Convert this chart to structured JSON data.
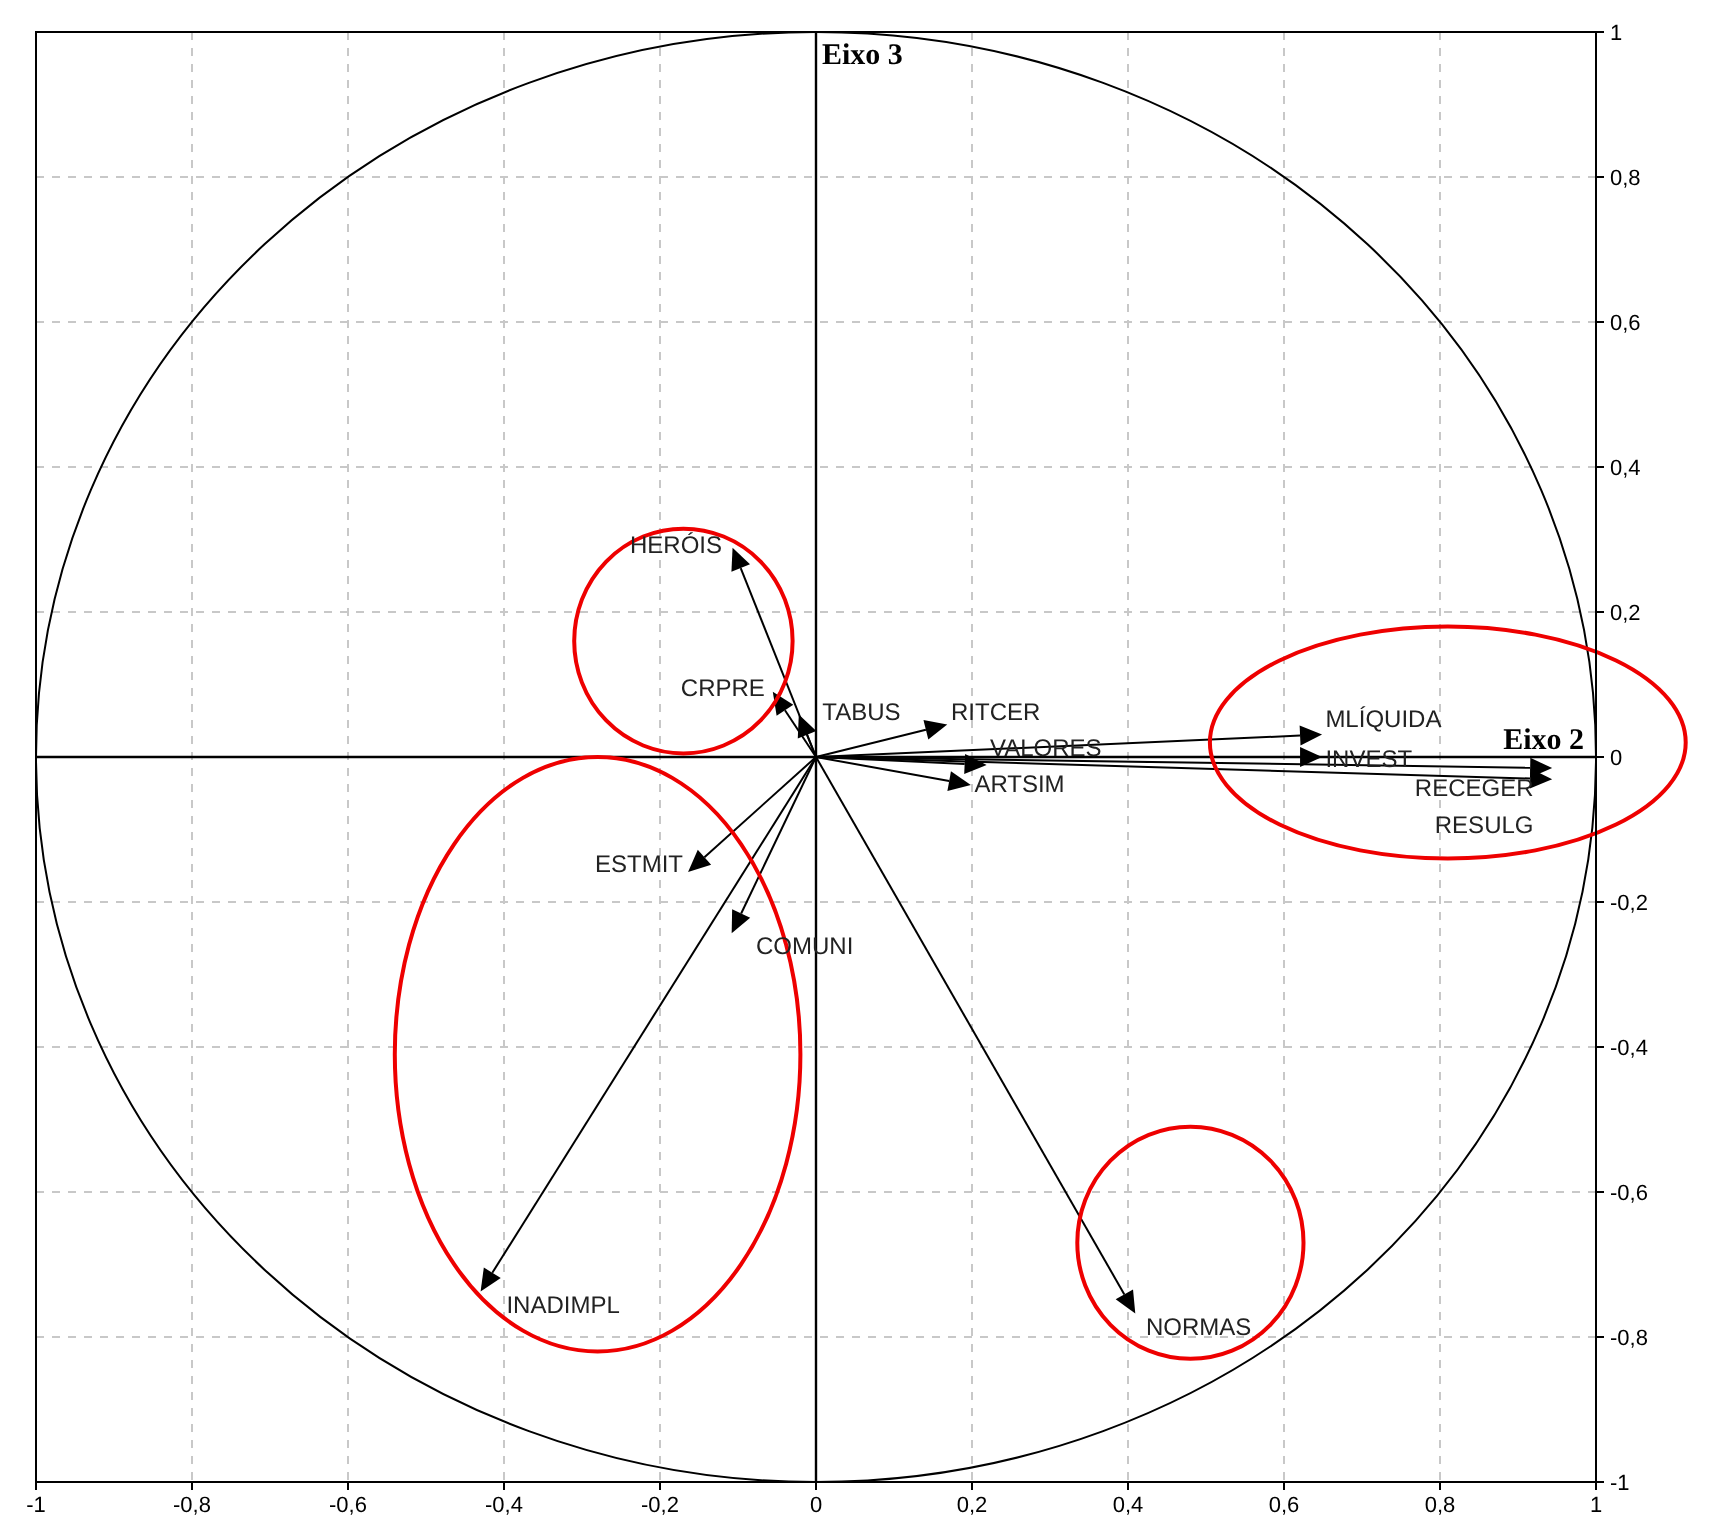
{
  "chart_data": {
    "type": "scatter",
    "marker": "triangle",
    "grid": true,
    "x": [
      -0.1,
      -0.045,
      -0.015,
      0.15,
      0.2,
      0.18,
      0.63,
      0.63,
      0.925,
      0.925,
      -0.15,
      -0.1,
      -0.42,
      0.4
    ],
    "series": [
      {
        "color": "#000000",
        "values": [
          0.27,
          0.073,
          0.04,
          0.04,
          -0.01,
          -0.035,
          0.03,
          0,
          -0.015,
          -0.03,
          -0.145,
          -0.225,
          -0.72,
          -0.75
        ]
      }
    ],
    "annotations": [
      {
        "text": "HERÓIS",
        "x": -0.1,
        "y": 0.27
      },
      {
        "text": "CRPRE",
        "x": -0.045,
        "y": 0.073
      },
      {
        "text": "TABUS",
        "x": -0.015,
        "y": 0.04
      },
      {
        "text": "RITCER",
        "x": 0.15,
        "y": 0.04
      },
      {
        "text": "VALORES",
        "x": 0.2,
        "y": -0.01
      },
      {
        "text": "ARTSIM",
        "x": 0.18,
        "y": -0.035
      },
      {
        "text": "MLÍQUIDA",
        "x": 0.63,
        "y": 0.03
      },
      {
        "text": "INVEST",
        "x": 0.63,
        "y": 0
      },
      {
        "text": "RECEGER",
        "x": 0.925,
        "y": -0.015
      },
      {
        "text": "RESULG",
        "x": 0.925,
        "y": -0.03
      },
      {
        "text": "ESTMIT",
        "x": -0.15,
        "y": -0.145
      },
      {
        "text": "COMUNI",
        "x": -0.1,
        "y": -0.225
      },
      {
        "text": "INADIMPL",
        "x": -0.42,
        "y": -0.72
      },
      {
        "text": "NORMAS",
        "x": 0.4,
        "y": -0.75
      }
    ],
    "xlabel": "Eixo 2",
    "ylabel": "Eixo 3",
    "xlim": [
      -1,
      1
    ],
    "ylim": [
      -1,
      1
    ],
    "xticks": [
      -1,
      {
        "value": -0.8,
        "label": "-0,8"
      },
      {
        "value": -0.6,
        "label": "-0,6"
      },
      {
        "value": -0.4,
        "label": "-0,4"
      },
      {
        "value": -0.2,
        "label": "-0,2"
      },
      0,
      {
        "value": 0.2,
        "label": "0,2"
      },
      {
        "value": 0.4,
        "label": "0,4"
      },
      {
        "value": 0.6,
        "label": "0,6"
      },
      {
        "value": 0.8,
        "label": "0,8"
      },
      1
    ],
    "yticks": [
      -1,
      {
        "value": -0.8,
        "label": "-0,8"
      },
      {
        "value": -0.6,
        "label": "-0,6"
      },
      {
        "value": -0.4,
        "label": "-0,4"
      },
      {
        "value": -0.2,
        "label": "-0,2"
      },
      0,
      {
        "value": 0.2,
        "label": "0,2"
      },
      {
        "value": 0.4,
        "label": "0,4"
      },
      {
        "value": 0.6,
        "label": "0,6"
      },
      {
        "value": 0.8,
        "label": "0,8"
      },
      1
    ]
  }
}
